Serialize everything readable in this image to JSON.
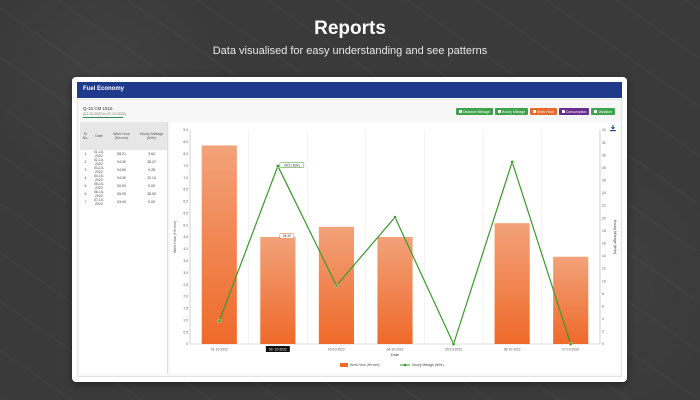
{
  "hero": {
    "title": "Reports",
    "subtitle": "Data visualised for easy understanding and see patterns"
  },
  "app": {
    "header_title": "Fuel Economy",
    "vehicle_id": "Q-15 CM 1516",
    "vehicle_range": "(01-10-2022 to 07-10-2022)"
  },
  "toggles": [
    {
      "label": "Distance Mileage",
      "state": "green"
    },
    {
      "label": "Hourly Mileage",
      "state": "green"
    },
    {
      "label": "Work Hour",
      "state": "active"
    },
    {
      "label": "Consumption",
      "state": "purple"
    },
    {
      "label": "Variation",
      "state": "green"
    }
  ],
  "table": {
    "headers": [
      "Sr No.",
      "Date",
      "Work Hour (Hh:mm)",
      "Hourly Mileage (ltr/hr)"
    ],
    "rows": [
      [
        "1",
        "01-10-2022",
        "08:21",
        "3.64"
      ],
      [
        "2",
        "02-10-2022",
        "04:30",
        "28.27"
      ],
      [
        "3",
        "03-10-2022",
        "04:56",
        "9.28"
      ],
      [
        "4",
        "04-10-2022",
        "04:30",
        "20.14"
      ],
      [
        "5",
        "05-10-2022",
        "00:00",
        "0.00"
      ],
      [
        "6",
        "06-10-2022",
        "05:05",
        "28.92"
      ],
      [
        "7",
        "07-10-2022",
        "03:40",
        "0.00"
      ]
    ]
  },
  "chart_data": {
    "type": "bar",
    "categories": [
      "01-10-2022",
      "02- 10-2022",
      "03-10-2022",
      "04-10-2022",
      "05-10-2022",
      "06-10-2022",
      "07-10-2022"
    ],
    "series": [
      {
        "name": "Work Hour (Hh:mm)",
        "type": "bar",
        "axis": "left",
        "values": [
          8.35,
          4.5,
          4.93,
          4.5,
          0,
          5.08,
          3.67
        ]
      },
      {
        "name": "Hourly Mileage (ltr/hr)",
        "type": "line",
        "axis": "right",
        "values": [
          3.64,
          28.27,
          9.28,
          20.14,
          0.0,
          28.92,
          0.0
        ]
      }
    ],
    "xlabel": "Date",
    "ylabel_left": "Work Hour (Hh:mm)",
    "ylabel_right": "Hourly Mileage (ltr/hr)",
    "ylim_left": [
      0,
      9
    ],
    "ylim_right": [
      0,
      34
    ],
    "left_ticks": [
      "0",
      "0.5",
      "1.0",
      "1.5",
      "2.0",
      "2.5",
      "3.0",
      "3.5",
      "4.0",
      "4.5",
      "5.0",
      "5.5",
      "6.0",
      "6.5",
      "7.0",
      "7.5",
      "8.0",
      "8.5",
      "9.0"
    ],
    "right_ticks": [
      "0",
      "2",
      "4",
      "6",
      "8",
      "10",
      "12",
      "14",
      "16",
      "18",
      "20",
      "22",
      "24",
      "26",
      "28",
      "30",
      "32",
      "34"
    ],
    "annotations": [
      {
        "index": 1,
        "series": 1,
        "text": "08:21 8(hr)"
      },
      {
        "index": 1,
        "series": 0,
        "text": "04:30"
      }
    ],
    "highlighted_category": 1,
    "grid": true,
    "legend_position": "bottom",
    "colors": {
      "bar_top": "#f2a27a",
      "bar_bottom": "#ef6a2a",
      "line": "#3a9a2a"
    }
  }
}
